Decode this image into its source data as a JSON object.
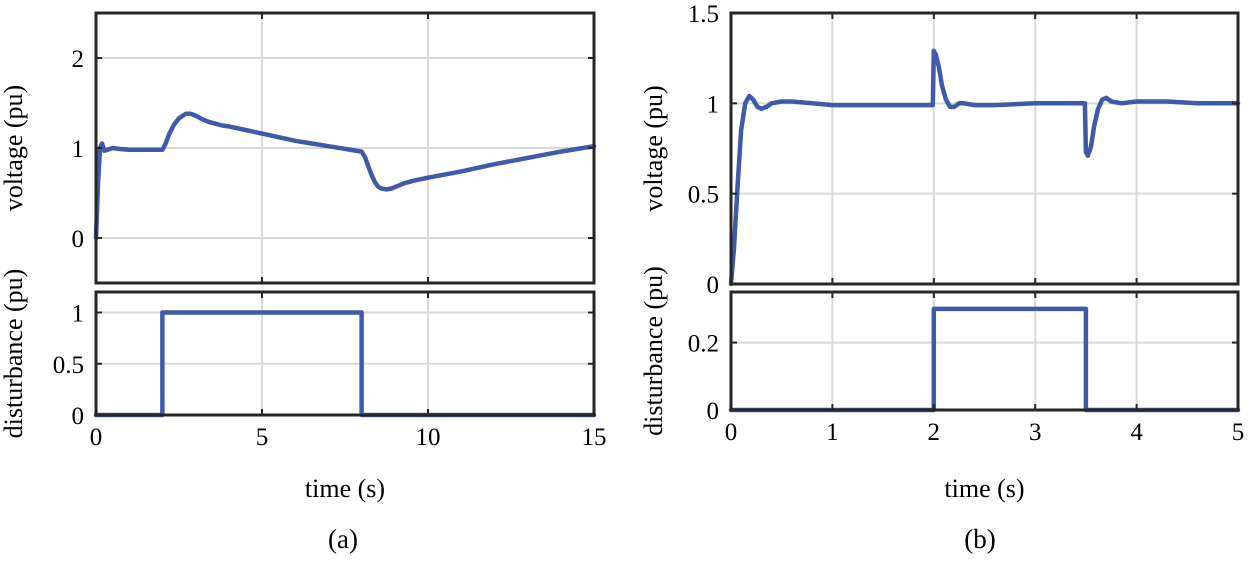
{
  "colors": {
    "line": "#3f5aa8",
    "grid": "#d9d9d9",
    "frame": "#262626"
  },
  "chart_data": [
    {
      "caption": "(a)",
      "panels": [
        {
          "type": "line",
          "ylabel": "voltage (pu)",
          "xlim": [
            0,
            15
          ],
          "ylim": [
            -0.5,
            2.5
          ],
          "xticks": [
            0,
            5,
            10,
            15
          ],
          "yticks": [
            "0",
            "1",
            "2"
          ],
          "ytick_values": [
            0,
            1,
            2
          ],
          "grid": true,
          "series": [
            {
              "x": [
                0,
                0.06,
                0.12,
                0.18,
                0.25,
                0.35,
                0.5,
                0.7,
                1.0,
                1.5,
                2.0,
                2.1,
                2.2,
                2.35,
                2.5,
                2.7,
                2.85,
                3.0,
                3.2,
                3.4,
                3.6,
                3.8,
                4.0,
                4.5,
                5.0,
                5.5,
                6.0,
                6.5,
                7.0,
                7.5,
                8.0,
                8.1,
                8.2,
                8.3,
                8.4,
                8.5,
                8.6,
                8.75,
                8.9,
                9.1,
                9.3,
                9.6,
                10.0,
                11.0,
                12.0,
                13.0,
                14.0,
                14.5,
                15.0
              ],
              "y": [
                0.0,
                0.6,
                1.0,
                1.05,
                0.97,
                0.98,
                1.0,
                0.99,
                0.98,
                0.98,
                0.98,
                1.05,
                1.15,
                1.26,
                1.33,
                1.38,
                1.38,
                1.36,
                1.32,
                1.29,
                1.27,
                1.25,
                1.24,
                1.2,
                1.16,
                1.12,
                1.08,
                1.05,
                1.02,
                0.99,
                0.96,
                0.9,
                0.8,
                0.7,
                0.62,
                0.57,
                0.55,
                0.54,
                0.55,
                0.58,
                0.61,
                0.64,
                0.67,
                0.74,
                0.82,
                0.89,
                0.96,
                0.99,
                1.02
              ]
            }
          ]
        },
        {
          "type": "line",
          "ylabel": "disturbance (pu)",
          "xlabel": "time (s)",
          "xlim": [
            0,
            15
          ],
          "ylim": [
            0,
            1.2
          ],
          "xticks": [
            0,
            5,
            10,
            15
          ],
          "yticks": [
            "0",
            "0.5",
            "1"
          ],
          "ytick_values": [
            0,
            0.5,
            1
          ],
          "grid": true,
          "series": [
            {
              "x": [
                0,
                2,
                2,
                8,
                8,
                15
              ],
              "y": [
                0,
                0,
                1,
                1,
                0,
                0
              ]
            }
          ]
        }
      ]
    },
    {
      "caption": "(b)",
      "panels": [
        {
          "type": "line",
          "ylabel": "voltage (pu)",
          "xlim": [
            0,
            5
          ],
          "ylim": [
            0,
            1.5
          ],
          "xticks": [
            0,
            1,
            2,
            3,
            4,
            5
          ],
          "yticks": [
            "0",
            "0.5",
            "1",
            "1.5"
          ],
          "ytick_values": [
            0,
            0.5,
            1,
            1.5
          ],
          "grid": true,
          "series": [
            {
              "x": [
                0,
                0.03,
                0.06,
                0.1,
                0.14,
                0.18,
                0.22,
                0.26,
                0.3,
                0.35,
                0.4,
                0.5,
                0.6,
                0.8,
                1.0,
                1.3,
                1.6,
                1.99,
                2.0,
                2.02,
                2.05,
                2.08,
                2.12,
                2.16,
                2.2,
                2.25,
                2.3,
                2.4,
                2.6,
                3.0,
                3.49,
                3.5,
                3.52,
                3.55,
                3.58,
                3.62,
                3.66,
                3.7,
                3.75,
                3.85,
                4.0,
                4.3,
                4.6,
                5.0
              ],
              "y": [
                0.0,
                0.2,
                0.5,
                0.85,
                1.0,
                1.04,
                1.02,
                0.98,
                0.97,
                0.98,
                1.0,
                1.01,
                1.01,
                1.0,
                0.99,
                0.99,
                0.99,
                0.99,
                1.29,
                1.27,
                1.2,
                1.1,
                1.02,
                0.98,
                0.98,
                1.0,
                1.0,
                0.99,
                0.99,
                1.0,
                1.0,
                0.73,
                0.71,
                0.76,
                0.87,
                0.97,
                1.02,
                1.03,
                1.01,
                1.0,
                1.01,
                1.01,
                1.0,
                1.0
              ]
            }
          ]
        },
        {
          "type": "line",
          "ylabel": "disturbance (pu)",
          "xlabel": "time (s)",
          "xlim": [
            0,
            5
          ],
          "ylim": [
            0,
            0.35
          ],
          "xticks": [
            0,
            1,
            2,
            3,
            4,
            5
          ],
          "yticks": [
            "0",
            "0.2"
          ],
          "ytick_values": [
            0,
            0.2
          ],
          "grid": true,
          "series": [
            {
              "x": [
                0,
                2,
                2,
                3.5,
                3.5,
                5
              ],
              "y": [
                0,
                0,
                0.3,
                0.3,
                0,
                0
              ]
            }
          ]
        }
      ]
    }
  ]
}
